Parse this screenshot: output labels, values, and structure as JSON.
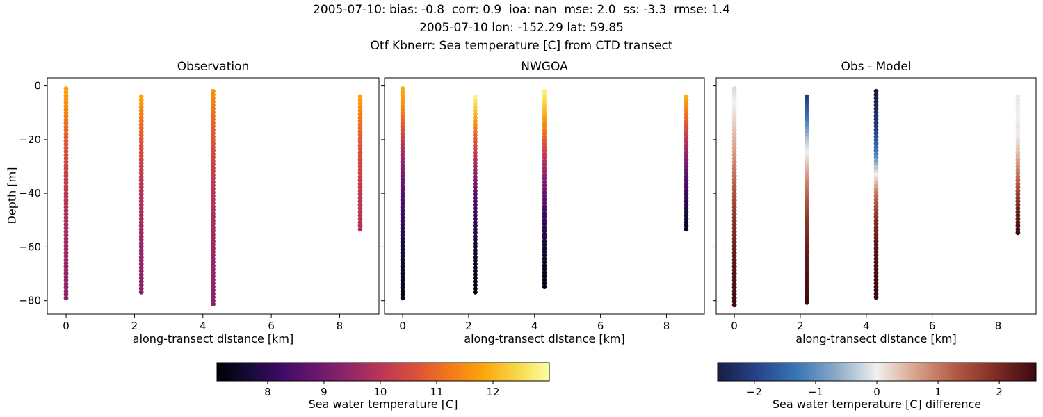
{
  "header": {
    "stats_line": "2005-07-10: bias: -0.8  corr: 0.9  ioa: nan  mse: 2.0  ss: -3.3  rmse: 1.4",
    "location_line": "2005-07-10 lon: -152.29 lat: 59.85",
    "dataset_line": "Otf Kbnerr: Sea temperature [C] from CTD transect"
  },
  "colormaps": {
    "inferno": [
      [
        0,
        "#000004"
      ],
      [
        0.1,
        "#160b39"
      ],
      [
        0.2,
        "#420a68"
      ],
      [
        0.3,
        "#6a176e"
      ],
      [
        0.4,
        "#932667"
      ],
      [
        0.5,
        "#bc3754"
      ],
      [
        0.6,
        "#dd513a"
      ],
      [
        0.7,
        "#f37819"
      ],
      [
        0.8,
        "#fca50a"
      ],
      [
        0.9,
        "#f6d746"
      ],
      [
        1,
        "#fcffa4"
      ]
    ],
    "balance": [
      [
        0,
        "#181c43"
      ],
      [
        0.125,
        "#27448c"
      ],
      [
        0.25,
        "#3876b5"
      ],
      [
        0.375,
        "#8cabc9"
      ],
      [
        0.5,
        "#f1f0ee"
      ],
      [
        0.625,
        "#d8a08a"
      ],
      [
        0.75,
        "#b25942"
      ],
      [
        0.875,
        "#7e2b23"
      ],
      [
        1,
        "#3c0911"
      ]
    ]
  },
  "chart_data": [
    {
      "type": "scatter",
      "title": "Observation",
      "xlabel": "along-transect distance [km]",
      "ylabel": "Depth [m]",
      "xlim": [
        -0.55,
        9.15
      ],
      "ylim": [
        -85,
        3
      ],
      "xticks": [
        0,
        2,
        4,
        6,
        8
      ],
      "yticks": [
        0,
        -20,
        -40,
        -60,
        -80
      ],
      "show_ylabels": true,
      "colormap": "inferno",
      "clim": [
        7.1,
        13.0
      ],
      "value_name": "Sea water temperature [C]",
      "profiles": [
        {
          "x": 0.0,
          "points": [
            [
              -1,
              11.8
            ],
            [
              -8,
              11.5
            ],
            [
              -16,
              11.0
            ],
            [
              -26,
              10.5
            ],
            [
              -38,
              10.1
            ],
            [
              -55,
              9.7
            ],
            [
              -79,
              9.4
            ]
          ]
        },
        {
          "x": 2.2,
          "points": [
            [
              -4,
              11.8
            ],
            [
              -12,
              11.2
            ],
            [
              -22,
              10.6
            ],
            [
              -34,
              10.1
            ],
            [
              -55,
              9.6
            ],
            [
              -78,
              9.3
            ]
          ]
        },
        {
          "x": 4.3,
          "points": [
            [
              -2,
              11.6
            ],
            [
              -12,
              11.0
            ],
            [
              -24,
              10.5
            ],
            [
              -40,
              10.0
            ],
            [
              -60,
              9.6
            ],
            [
              -82,
              9.3
            ]
          ]
        },
        {
          "x": 8.6,
          "points": [
            [
              -4,
              11.8
            ],
            [
              -14,
              11.1
            ],
            [
              -26,
              10.5
            ],
            [
              -40,
              10.1
            ],
            [
              -54,
              9.9
            ]
          ]
        }
      ]
    },
    {
      "type": "scatter",
      "title": "NWGOA",
      "xlabel": "along-transect distance [km]",
      "ylabel": "Depth [m]",
      "xlim": [
        -0.55,
        9.15
      ],
      "ylim": [
        -85,
        3
      ],
      "xticks": [
        0,
        2,
        4,
        6,
        8
      ],
      "yticks": [
        0,
        -20,
        -40,
        -60,
        -80
      ],
      "show_ylabels": false,
      "colormap": "inferno",
      "clim": [
        7.1,
        13.0
      ],
      "value_name": "Sea water temperature [C]",
      "profiles": [
        {
          "x": 0.0,
          "points": [
            [
              -1,
              11.9
            ],
            [
              -8,
              11.5
            ],
            [
              -16,
              10.6
            ],
            [
              -26,
              9.6
            ],
            [
              -40,
              8.6
            ],
            [
              -58,
              7.8
            ],
            [
              -79,
              7.3
            ]
          ]
        },
        {
          "x": 2.2,
          "points": [
            [
              -4,
              12.8
            ],
            [
              -10,
              12.1
            ],
            [
              -18,
              11.0
            ],
            [
              -28,
              9.8
            ],
            [
              -42,
              8.5
            ],
            [
              -60,
              7.6
            ],
            [
              -78,
              7.2
            ]
          ]
        },
        {
          "x": 4.3,
          "points": [
            [
              -2,
              12.8
            ],
            [
              -10,
              12.0
            ],
            [
              -20,
              10.8
            ],
            [
              -32,
              9.5
            ],
            [
              -48,
              8.2
            ],
            [
              -64,
              7.5
            ],
            [
              -76,
              7.2
            ]
          ]
        },
        {
          "x": 8.6,
          "points": [
            [
              -4,
              11.9
            ],
            [
              -12,
              11.0
            ],
            [
              -22,
              9.8
            ],
            [
              -34,
              8.6
            ],
            [
              -46,
              7.8
            ],
            [
              -54,
              7.4
            ]
          ]
        }
      ]
    },
    {
      "type": "scatter",
      "title": "Obs - Model",
      "xlabel": "along-transect distance [km]",
      "ylabel": "Depth [m]",
      "xlim": [
        -0.55,
        9.15
      ],
      "ylim": [
        -85,
        3
      ],
      "xticks": [
        0,
        2,
        4,
        6,
        8
      ],
      "yticks": [
        0,
        -20,
        -40,
        -60,
        -80
      ],
      "show_ylabels": false,
      "colormap": "balance",
      "clim": [
        -2.6,
        2.6
      ],
      "value_name": "Sea water temperature [C] difference",
      "profiles": [
        {
          "x": 0.0,
          "points": [
            [
              -1,
              -0.2
            ],
            [
              -12,
              0.2
            ],
            [
              -25,
              0.7
            ],
            [
              -38,
              1.3
            ],
            [
              -52,
              1.9
            ],
            [
              -66,
              2.3
            ],
            [
              -82,
              2.6
            ]
          ]
        },
        {
          "x": 2.2,
          "points": [
            [
              -4,
              -2.1
            ],
            [
              -12,
              -1.3
            ],
            [
              -20,
              -0.4
            ],
            [
              -27,
              0.2
            ],
            [
              -36,
              0.9
            ],
            [
              -50,
              1.8
            ],
            [
              -64,
              2.3
            ],
            [
              -81,
              2.6
            ]
          ]
        },
        {
          "x": 4.3,
          "points": [
            [
              -2,
              -2.6
            ],
            [
              -16,
              -2.1
            ],
            [
              -26,
              -1.1
            ],
            [
              -33,
              0.0
            ],
            [
              -40,
              1.0
            ],
            [
              -50,
              1.9
            ],
            [
              -62,
              2.4
            ],
            [
              -79,
              2.6
            ]
          ]
        },
        {
          "x": 8.6,
          "points": [
            [
              -4,
              0.1
            ],
            [
              -16,
              -0.1
            ],
            [
              -26,
              0.5
            ],
            [
              -36,
              1.3
            ],
            [
              -46,
              2.1
            ],
            [
              -55,
              2.6
            ]
          ]
        }
      ]
    }
  ],
  "colorbars": [
    {
      "label": "Sea water temperature [C]",
      "colormap": "inferno",
      "clim": [
        7.1,
        13.0
      ],
      "ticks": [
        8,
        9,
        10,
        11,
        12
      ]
    },
    {
      "label": "Sea water temperature [C] difference",
      "colormap": "balance",
      "clim": [
        -2.6,
        2.6
      ],
      "ticks": [
        -2,
        -1,
        0,
        1,
        2
      ]
    }
  ]
}
